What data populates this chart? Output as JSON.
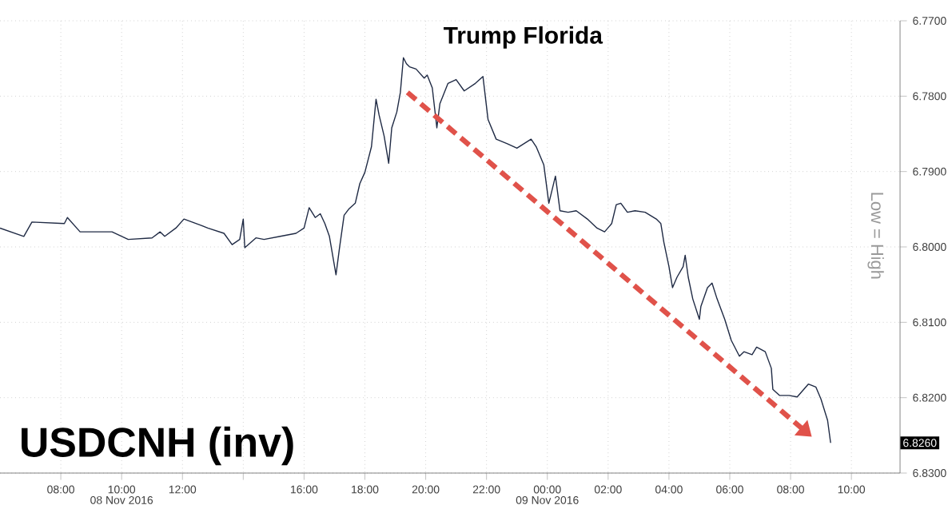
{
  "chart_data": {
    "type": "line",
    "title": "USDCNH (inv)",
    "annotations": [
      "Trump Florida",
      "Low = High",
      "6.8260",
      "08 Nov 2016",
      "09 Nov 2016"
    ],
    "x": [
      "2016-11-08T06:00",
      "2016-11-08T06:47",
      "2016-11-08T07:03",
      "2016-11-08T08:07",
      "2016-11-08T08:13",
      "2016-11-08T08:38",
      "2016-11-08T09:10",
      "2016-11-08T09:41",
      "2016-11-08T10:13",
      "2016-11-08T11:00",
      "2016-11-08T11:16",
      "2016-11-08T11:25",
      "2016-11-08T11:47",
      "2016-11-08T12:03",
      "2016-11-08T12:35",
      "2016-11-08T12:50",
      "2016-11-08T13:22",
      "2016-11-08T13:38",
      "2016-11-08T13:53",
      "2016-11-08T14:00",
      "2016-11-08T14:03",
      "2016-11-08T14:25",
      "2016-11-08T14:41",
      "2016-11-08T15:13",
      "2016-11-08T15:44",
      "2016-11-08T16:00",
      "2016-11-08T16:10",
      "2016-11-08T16:22",
      "2016-11-08T16:32",
      "2016-11-08T16:41",
      "2016-11-08T16:50",
      "2016-11-08T17:03",
      "2016-11-08T17:10",
      "2016-11-08T17:19",
      "2016-11-08T17:28",
      "2016-11-08T17:41",
      "2016-11-08T17:50",
      "2016-11-08T18:00",
      "2016-11-08T18:13",
      "2016-11-08T18:22",
      "2016-11-08T18:28",
      "2016-11-08T18:38",
      "2016-11-08T18:47",
      "2016-11-08T18:53",
      "2016-11-08T19:03",
      "2016-11-08T19:10",
      "2016-11-08T19:16",
      "2016-11-08T19:22",
      "2016-11-08T19:28",
      "2016-11-08T19:41",
      "2016-11-08T19:57",
      "2016-11-08T20:03",
      "2016-11-08T20:13",
      "2016-11-08T20:22",
      "2016-11-08T20:28",
      "2016-11-08T20:44",
      "2016-11-08T21:00",
      "2016-11-08T21:16",
      "2016-11-08T21:38",
      "2016-11-08T21:53",
      "2016-11-08T22:03",
      "2016-11-08T22:19",
      "2016-11-08T22:41",
      "2016-11-08T23:00",
      "2016-11-08T23:28",
      "2016-11-08T23:38",
      "2016-11-08T23:53",
      "2016-11-09T00:03",
      "2016-11-09T00:16",
      "2016-11-09T00:25",
      "2016-11-09T00:41",
      "2016-11-09T00:57",
      "2016-11-09T01:19",
      "2016-11-09T01:38",
      "2016-11-09T01:53",
      "2016-11-09T02:07",
      "2016-11-09T02:16",
      "2016-11-09T02:25",
      "2016-11-09T02:38",
      "2016-11-09T02:53",
      "2016-11-09T03:13",
      "2016-11-09T03:35",
      "2016-11-09T03:44",
      "2016-11-09T03:50",
      "2016-11-09T04:00",
      "2016-11-09T04:07",
      "2016-11-09T04:16",
      "2016-11-09T04:28",
      "2016-11-09T04:32",
      "2016-11-09T04:38",
      "2016-11-09T04:47",
      "2016-11-09T05:00",
      "2016-11-09T05:03",
      "2016-11-09T05:16",
      "2016-11-09T05:25",
      "2016-11-09T05:35",
      "2016-11-09T05:50",
      "2016-11-09T06:03",
      "2016-11-09T06:19",
      "2016-11-09T06:28",
      "2016-11-09T06:44",
      "2016-11-09T06:53",
      "2016-11-09T07:10",
      "2016-11-09T07:22",
      "2016-11-09T07:25",
      "2016-11-09T07:38",
      "2016-11-09T07:57",
      "2016-11-09T08:13",
      "2016-11-09T08:35",
      "2016-11-09T08:50",
      "2016-11-09T09:00",
      "2016-11-09T09:13",
      "2016-11-09T09:19"
    ],
    "series": [
      {
        "color": "#1f2a44",
        "values": [
          6.7975,
          6.7986,
          6.7967,
          6.7969,
          6.7961,
          6.798,
          6.798,
          6.798,
          6.799,
          6.7988,
          6.798,
          6.7986,
          6.7975,
          6.7963,
          6.7971,
          6.7975,
          6.7982,
          6.7997,
          6.799,
          6.7963,
          6.8001,
          6.7988,
          6.799,
          6.7986,
          6.7982,
          6.7975,
          6.7948,
          6.7961,
          6.7956,
          6.7969,
          6.7986,
          6.8037,
          6.8001,
          6.7958,
          6.795,
          6.7942,
          6.7916,
          6.7901,
          6.7867,
          6.7804,
          6.7825,
          6.7853,
          6.7889,
          6.7842,
          6.7821,
          6.7795,
          6.7749,
          6.7757,
          6.7761,
          6.7764,
          6.7776,
          6.7772,
          6.7789,
          6.7842,
          6.781,
          6.7783,
          6.7778,
          6.7793,
          6.7783,
          6.7774,
          6.7831,
          6.7857,
          6.7863,
          6.7869,
          6.7857,
          6.7867,
          6.7891,
          6.7942,
          6.7906,
          6.7952,
          6.7954,
          6.7952,
          6.7963,
          6.7975,
          6.798,
          6.7969,
          6.7944,
          6.7942,
          6.7954,
          6.7952,
          6.7954,
          6.7963,
          6.7969,
          6.7994,
          6.8026,
          6.8054,
          6.804,
          6.8026,
          6.8011,
          6.804,
          6.8069,
          6.8096,
          6.8079,
          6.8054,
          6.8048,
          6.8069,
          6.8096,
          6.8124,
          6.8145,
          6.8139,
          6.8143,
          6.8133,
          6.8139,
          6.8161,
          6.8189,
          6.8197,
          6.8197,
          6.8199,
          6.8182,
          6.8186,
          6.8202,
          6.823,
          6.826
        ]
      }
    ],
    "xlim": [
      "2016-11-08T06:00",
      "2016-11-09T11:36"
    ],
    "xticks": [
      {
        "value": "2016-11-08T08:00",
        "label": "08:00"
      },
      {
        "value": "2016-11-08T10:00",
        "label": "10:00"
      },
      {
        "value": "2016-11-08T12:00",
        "label": "12:00"
      },
      {
        "value": "2016-11-08T14:00",
        "label": null
      },
      {
        "value": "2016-11-08T16:00",
        "label": "16:00"
      },
      {
        "value": "2016-11-08T18:00",
        "label": "18:00"
      },
      {
        "value": "2016-11-08T20:00",
        "label": "20:00"
      },
      {
        "value": "2016-11-08T22:00",
        "label": "22:00"
      },
      {
        "value": "2016-11-09T00:00",
        "label": "00:00"
      },
      {
        "value": "2016-11-09T02:00",
        "label": "02:00"
      },
      {
        "value": "2016-11-09T04:00",
        "label": "04:00"
      },
      {
        "value": "2016-11-09T06:00",
        "label": "06:00"
      },
      {
        "value": "2016-11-09T08:00",
        "label": "08:00"
      },
      {
        "value": "2016-11-09T10:00",
        "label": "10:00"
      }
    ],
    "ylim": [
      6.83,
      6.77
    ],
    "yticks": [
      {
        "value": 6.77,
        "label": "6.7700"
      },
      {
        "value": 6.78,
        "label": "6.7800"
      },
      {
        "value": 6.79,
        "label": "6.7900"
      },
      {
        "value": 6.8,
        "label": "6.8000"
      },
      {
        "value": 6.81,
        "label": "6.8100"
      },
      {
        "value": 6.82,
        "label": "6.8200"
      },
      {
        "value": 6.83,
        "label": "6.8300"
      }
    ],
    "grid": true,
    "marker": "none",
    "line_style": "solid"
  }
}
